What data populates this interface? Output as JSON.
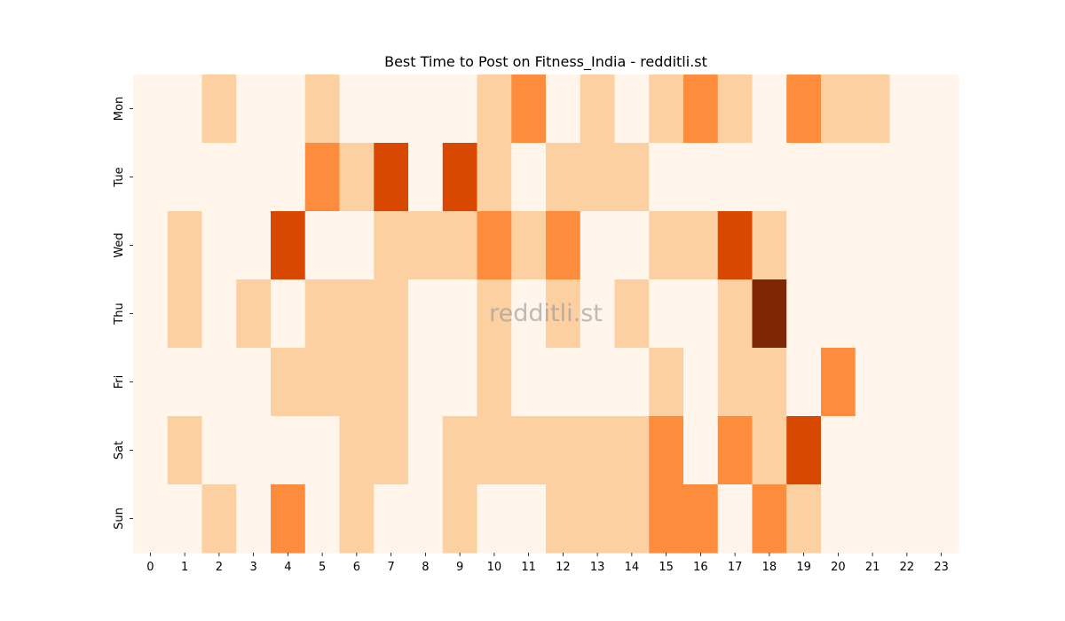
{
  "chart_data": {
    "type": "heatmap",
    "title": "Best Time to Post on Fitness_India - redditli.st",
    "xlabel": "",
    "ylabel": "",
    "x": [
      "0",
      "1",
      "2",
      "3",
      "4",
      "5",
      "6",
      "7",
      "8",
      "9",
      "10",
      "11",
      "12",
      "13",
      "14",
      "15",
      "16",
      "17",
      "18",
      "19",
      "20",
      "21",
      "22",
      "23"
    ],
    "y": [
      "Mon",
      "Tue",
      "Wed",
      "Thu",
      "Fri",
      "Sat",
      "Sun"
    ],
    "values": [
      [
        0,
        0,
        1,
        0,
        0,
        1,
        0,
        0,
        0,
        0,
        1,
        2,
        0,
        1,
        0,
        1,
        2,
        1,
        0,
        2,
        1,
        1,
        0,
        0
      ],
      [
        0,
        0,
        0,
        0,
        0,
        2,
        1,
        3,
        0,
        3,
        1,
        0,
        1,
        1,
        1,
        0,
        0,
        0,
        0,
        0,
        0,
        0,
        0,
        0
      ],
      [
        0,
        1,
        0,
        0,
        3,
        0,
        0,
        1,
        1,
        1,
        2,
        1,
        2,
        0,
        0,
        1,
        1,
        3,
        1,
        0,
        0,
        0,
        0,
        0
      ],
      [
        0,
        1,
        0,
        1,
        0,
        1,
        1,
        1,
        0,
        0,
        1,
        0,
        1,
        0,
        1,
        0,
        0,
        1,
        4,
        0,
        0,
        0,
        0,
        0
      ],
      [
        0,
        0,
        0,
        0,
        1,
        1,
        1,
        1,
        0,
        0,
        1,
        0,
        0,
        0,
        0,
        1,
        0,
        1,
        1,
        0,
        2,
        0,
        0,
        0
      ],
      [
        0,
        1,
        0,
        0,
        0,
        0,
        1,
        1,
        0,
        1,
        1,
        1,
        1,
        1,
        1,
        2,
        0,
        2,
        1,
        3,
        0,
        0,
        0,
        0
      ],
      [
        0,
        0,
        1,
        0,
        2,
        0,
        1,
        0,
        0,
        1,
        0,
        0,
        1,
        1,
        1,
        2,
        2,
        0,
        2,
        1,
        0,
        0,
        0,
        0
      ]
    ],
    "colorscale": {
      "name": "Oranges",
      "levels": [
        "#fff5eb",
        "#fdd0a2",
        "#fd8d3c",
        "#d94801",
        "#7f2704"
      ]
    },
    "colorbar": false,
    "grid": false,
    "legend": "none"
  },
  "watermark": "redditli.st"
}
